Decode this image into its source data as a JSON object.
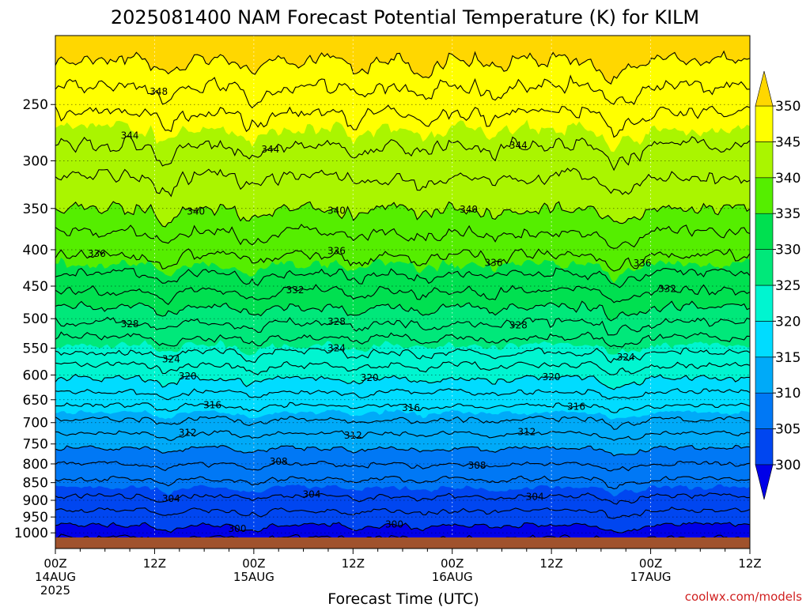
{
  "chart_data": {
    "type": "contour",
    "title": "2025081400 NAM Forecast Potential Temperature (K) for KILM",
    "xlabel": "Forecast Time (UTC)",
    "credit": "coolwx.com/models",
    "x_ticks": [
      {
        "hour": 0,
        "lines": [
          "00Z",
          "14AUG",
          "2025"
        ]
      },
      {
        "hour": 12,
        "lines": [
          "12Z"
        ]
      },
      {
        "hour": 24,
        "lines": [
          "00Z",
          "15AUG"
        ]
      },
      {
        "hour": 36,
        "lines": [
          "12Z"
        ]
      },
      {
        "hour": 48,
        "lines": [
          "00Z",
          "16AUG"
        ]
      },
      {
        "hour": 60,
        "lines": [
          "12Z"
        ]
      },
      {
        "hour": 72,
        "lines": [
          "00Z",
          "17AUG"
        ]
      },
      {
        "hour": 84,
        "lines": [
          "12Z"
        ]
      }
    ],
    "xlim": [
      0,
      84
    ],
    "y_scale": "log",
    "y_ticks": [
      250,
      300,
      350,
      400,
      450,
      500,
      550,
      600,
      650,
      700,
      750,
      800,
      850,
      900,
      950,
      1000
    ],
    "ylim": [
      200,
      1015
    ],
    "grid": "dotted",
    "colorbar": {
      "ticks": [
        300,
        305,
        310,
        315,
        320,
        325,
        330,
        335,
        340,
        345,
        350
      ],
      "extend": "both",
      "colors": [
        "#0000e8",
        "#0046f0",
        "#0078f5",
        "#00aaf8",
        "#00dcff",
        "#00f5d0",
        "#00e87a",
        "#00e050",
        "#55ee00",
        "#aaf500",
        "#ffff00",
        "#ffd700"
      ]
    },
    "contour_interval": 2,
    "contour_levels_range": [
      298,
      350
    ],
    "contour_labels": [
      {
        "v": 348,
        "hour": 12.5
      },
      {
        "v": 344,
        "hour": 9
      },
      {
        "v": 344,
        "hour": 26
      },
      {
        "v": 344,
        "hour": 56
      },
      {
        "v": 340,
        "hour": 17
      },
      {
        "v": 340,
        "hour": 34
      },
      {
        "v": 340,
        "hour": 50
      },
      {
        "v": 336,
        "hour": 5
      },
      {
        "v": 336,
        "hour": 34
      },
      {
        "v": 336,
        "hour": 53
      },
      {
        "v": 336,
        "hour": 71
      },
      {
        "v": 332,
        "hour": 29
      },
      {
        "v": 332,
        "hour": 74
      },
      {
        "v": 328,
        "hour": 9
      },
      {
        "v": 328,
        "hour": 34
      },
      {
        "v": 328,
        "hour": 56
      },
      {
        "v": 324,
        "hour": 14
      },
      {
        "v": 324,
        "hour": 34
      },
      {
        "v": 324,
        "hour": 69
      },
      {
        "v": 320,
        "hour": 16
      },
      {
        "v": 320,
        "hour": 38
      },
      {
        "v": 320,
        "hour": 60
      },
      {
        "v": 316,
        "hour": 19
      },
      {
        "v": 316,
        "hour": 43
      },
      {
        "v": 316,
        "hour": 63
      },
      {
        "v": 312,
        "hour": 16
      },
      {
        "v": 312,
        "hour": 36
      },
      {
        "v": 312,
        "hour": 57
      },
      {
        "v": 308,
        "hour": 27
      },
      {
        "v": 308,
        "hour": 51
      },
      {
        "v": 304,
        "hour": 14
      },
      {
        "v": 304,
        "hour": 31
      },
      {
        "v": 304,
        "hour": 58
      },
      {
        "v": 300,
        "hour": 22
      },
      {
        "v": 300,
        "hour": 41
      }
    ]
  }
}
